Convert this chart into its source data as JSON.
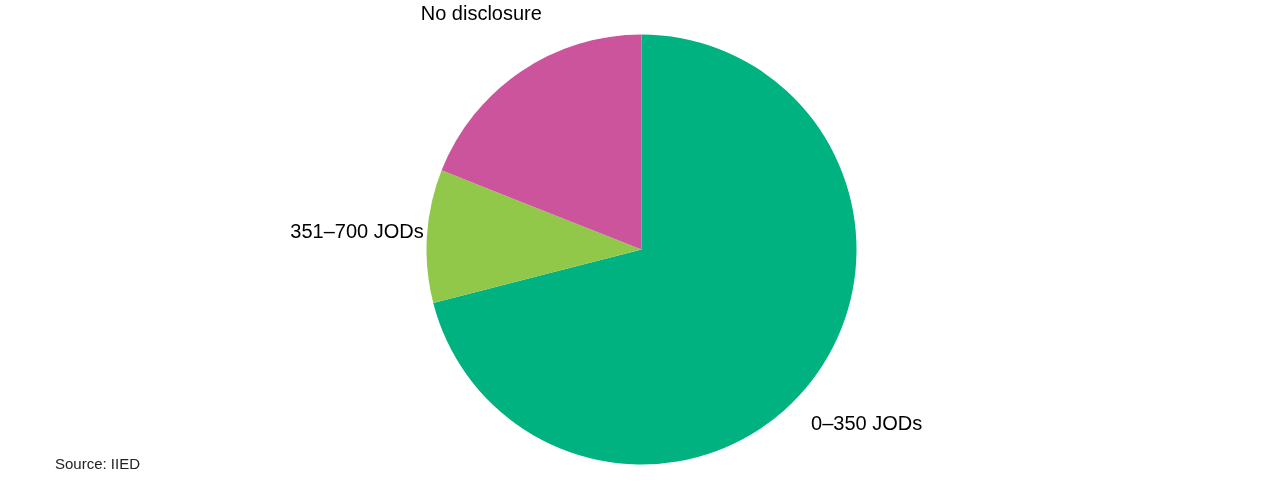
{
  "chart_data": {
    "type": "pie",
    "categories": [
      "0–350 JODs",
      "351–700 JODs",
      "No disclosure"
    ],
    "values": [
      71,
      10,
      19
    ],
    "colors": [
      "#00b27f",
      "#92c84a",
      "#cc549d"
    ],
    "annotations": [
      "Source: IIED"
    ]
  }
}
